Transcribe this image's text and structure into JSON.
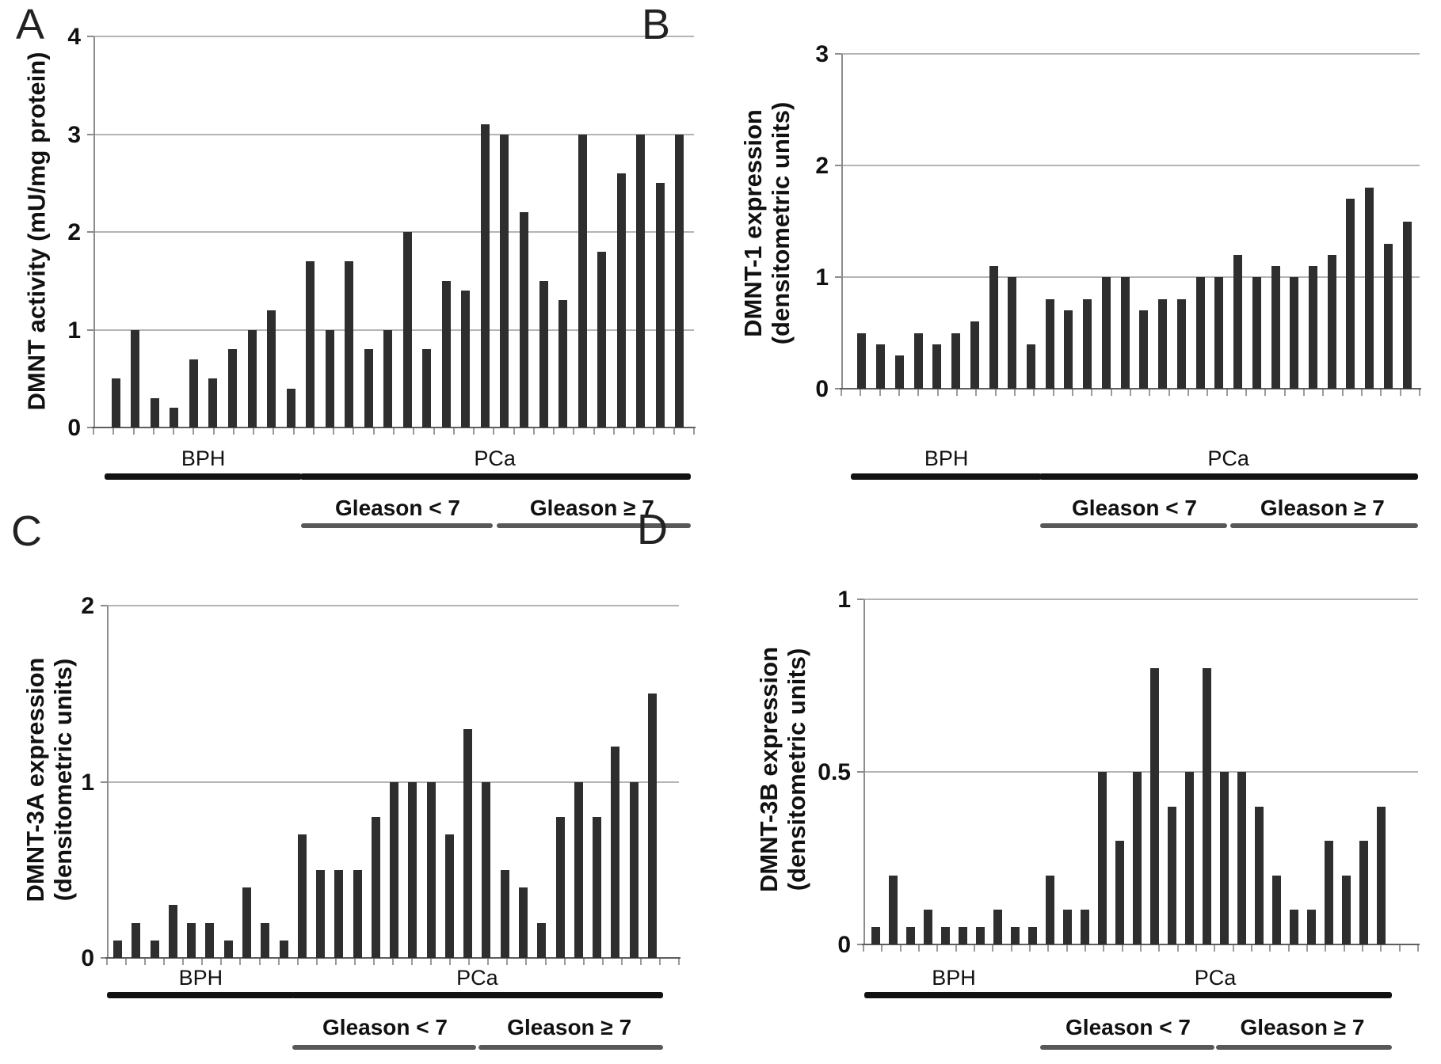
{
  "figure": {
    "colors": {
      "bar": "#2e2e2e",
      "gridline": "#b4b4b4",
      "axis": "#8c8c8c",
      "baseline": "#5e5e5e",
      "group_line": "#121212",
      "subgroup_line": "#585858",
      "background": "#ffffff"
    },
    "group_labels": [
      "BPH",
      "PCa"
    ],
    "subgroup_labels": [
      "Gleason < 7",
      "Gleason ≥ 7"
    ]
  },
  "chart_data": [
    {
      "panel": "A",
      "type": "bar",
      "ylabel": "DMNT activity (mU/mg protein)",
      "ylabel_lines": [
        "DMNT activity (mU/mg protein)"
      ],
      "ylim": [
        0,
        4
      ],
      "yticks": [
        "0",
        "1",
        "2",
        "3",
        "4"
      ],
      "grid": true,
      "legend_position": "none",
      "series": [
        {
          "group": "BPH",
          "subgroup": null,
          "values": [
            0.5,
            1.0,
            0.3,
            0.2,
            0.7,
            0.5,
            0.8,
            1.0,
            1.2,
            0.4
          ]
        },
        {
          "group": "PCa",
          "subgroup": "Gleason < 7",
          "values": [
            1.7,
            1.0,
            1.7,
            0.8,
            1.0,
            2.0,
            0.8,
            1.5,
            1.4,
            3.1
          ]
        },
        {
          "group": "PCa",
          "subgroup": "Gleason ≥ 7",
          "values": [
            3.0,
            2.2,
            1.5,
            1.3,
            3.0,
            1.8,
            2.6,
            3.0,
            2.5,
            3.0
          ]
        }
      ]
    },
    {
      "panel": "B",
      "type": "bar",
      "ylabel": "DMNT-1 expression (densitometric units)",
      "ylabel_lines": [
        "DMNT-1 expression",
        "(densitometric units)"
      ],
      "ylim": [
        0,
        3
      ],
      "yticks": [
        "0",
        "1",
        "2",
        "3"
      ],
      "grid": true,
      "legend_position": "none",
      "series": [
        {
          "group": "BPH",
          "subgroup": null,
          "values": [
            0.5,
            0.4,
            0.3,
            0.5,
            0.4,
            0.5,
            0.6,
            1.1,
            1.0,
            0.4
          ]
        },
        {
          "group": "PCa",
          "subgroup": "Gleason < 7",
          "values": [
            0.8,
            0.7,
            0.8,
            1.0,
            1.0,
            0.7,
            0.8,
            0.8,
            1.0,
            1.0
          ]
        },
        {
          "group": "PCa",
          "subgroup": "Gleason ≥ 7",
          "values": [
            1.2,
            1.0,
            1.1,
            1.0,
            1.1,
            1.2,
            1.7,
            1.8,
            1.3,
            1.5
          ]
        }
      ]
    },
    {
      "panel": "C",
      "type": "bar",
      "ylabel": "DMNT-3A expression (densitometric units)",
      "ylabel_lines": [
        "DMNT-3A expression",
        "(densitometric units)"
      ],
      "ylim": [
        0,
        2
      ],
      "yticks": [
        "0",
        "1",
        "2"
      ],
      "grid": true,
      "legend_position": "none",
      "series": [
        {
          "group": "BPH",
          "subgroup": null,
          "values": [
            0.1,
            0.2,
            0.1,
            0.3,
            0.2,
            0.2,
            0.1,
            0.4,
            0.2,
            0.1
          ]
        },
        {
          "group": "PCa",
          "subgroup": "Gleason < 7",
          "values": [
            0.7,
            0.5,
            0.5,
            0.5,
            0.8,
            1.0,
            1.0,
            1.0,
            0.7,
            1.3
          ]
        },
        {
          "group": "PCa",
          "subgroup": "Gleason ≥ 7",
          "values": [
            1.0,
            0.5,
            0.4,
            0.2,
            0.8,
            1.0,
            0.8,
            1.2,
            1.0,
            1.5
          ]
        }
      ]
    },
    {
      "panel": "D",
      "type": "bar",
      "ylabel": "DMNT-3B expression (densitometric units)",
      "ylabel_lines": [
        "DMNT-3B expression",
        "(densitometric units)"
      ],
      "ylim": [
        0,
        1
      ],
      "yticks": [
        "0",
        "0.5",
        "1"
      ],
      "grid": true,
      "legend_position": "none",
      "series": [
        {
          "group": "BPH",
          "subgroup": null,
          "values": [
            0.05,
            0.2,
            0.05,
            0.1,
            0.05,
            0.05,
            0.05,
            0.1,
            0.05,
            0.05
          ]
        },
        {
          "group": "PCa",
          "subgroup": "Gleason < 7",
          "values": [
            0.2,
            0.1,
            0.1,
            0.5,
            0.3,
            0.5,
            0.8,
            0.4,
            0.5,
            0.8
          ]
        },
        {
          "group": "PCa",
          "subgroup": "Gleason ≥ 7",
          "values": [
            0.5,
            0.5,
            0.4,
            0.2,
            0.1,
            0.1,
            0.3,
            0.2,
            0.3,
            0.4
          ]
        }
      ]
    }
  ]
}
